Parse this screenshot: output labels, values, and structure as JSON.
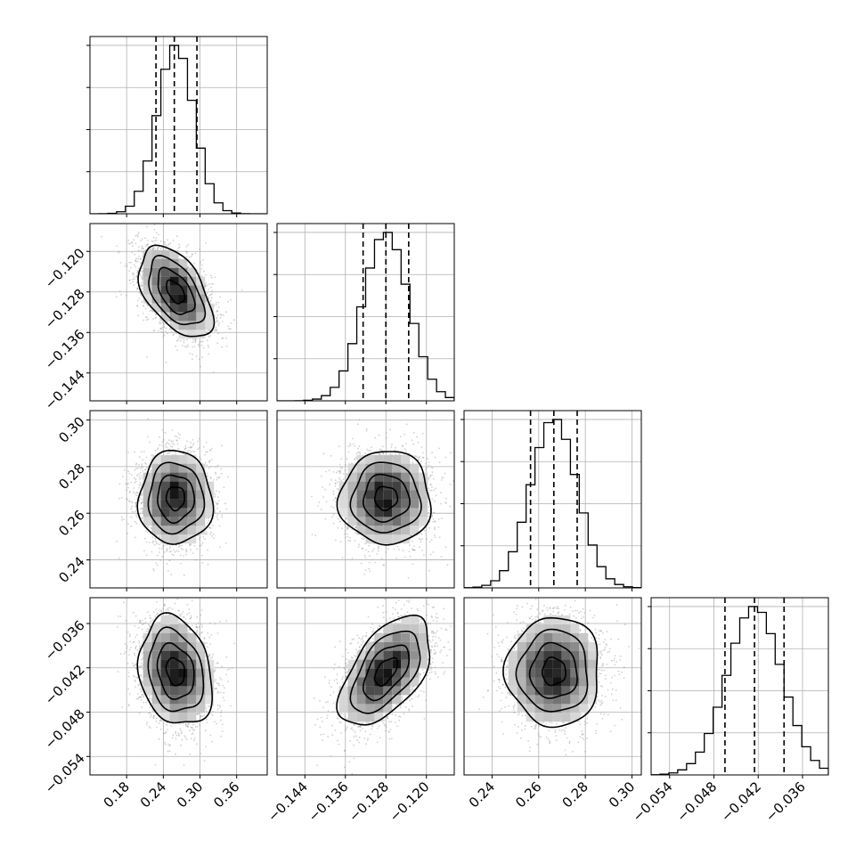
{
  "chart_data": {
    "type": "corner",
    "parameters": [
      "",
      "",
      "",
      ""
    ],
    "ranges": [
      [
        0.12,
        0.41
      ],
      [
        -0.1495,
        -0.1145
      ],
      [
        0.228,
        0.304
      ],
      [
        -0.0565,
        -0.0325
      ]
    ],
    "ticks": [
      [
        0.18,
        0.24,
        0.3,
        0.36
      ],
      [
        -0.144,
        -0.136,
        -0.128,
        -0.12
      ],
      [
        0.24,
        0.26,
        0.28,
        0.3
      ],
      [
        -0.054,
        -0.048,
        -0.042,
        -0.036
      ]
    ],
    "tick_labels": [
      [
        "0.18",
        "0.24",
        "0.30",
        "0.36"
      ],
      [
        "−0.144",
        "−0.136",
        "−0.128",
        "−0.120"
      ],
      [
        "0.24",
        "0.26",
        "0.28",
        "0.30"
      ],
      [
        "−0.054",
        "−0.048",
        "−0.042",
        "−0.036"
      ]
    ],
    "quantiles": [
      [
        0.228,
        0.258,
        0.295
      ],
      [
        -0.1325,
        -0.128,
        -0.1235
      ],
      [
        0.2565,
        0.2665,
        0.2765
      ],
      [
        -0.0465,
        -0.0425,
        -0.0385
      ]
    ],
    "means": [
      0.26,
      -0.128,
      0.2665,
      -0.0425
    ],
    "sigmas": [
      0.03,
      0.0045,
      0.01,
      0.0037
    ],
    "correlations": [
      [
        1.0,
        -0.5,
        0.0,
        -0.2
      ],
      [
        -0.5,
        1.0,
        0.0,
        0.55
      ],
      [
        0.0,
        0.0,
        1.0,
        0.0
      ],
      [
        -0.2,
        0.55,
        0.0,
        1.0
      ]
    ],
    "hist_bins": 20,
    "grid": true,
    "colors": {
      "line": "#000000",
      "grid": "#b0b0b0",
      "points": "#9a9a9a"
    }
  }
}
